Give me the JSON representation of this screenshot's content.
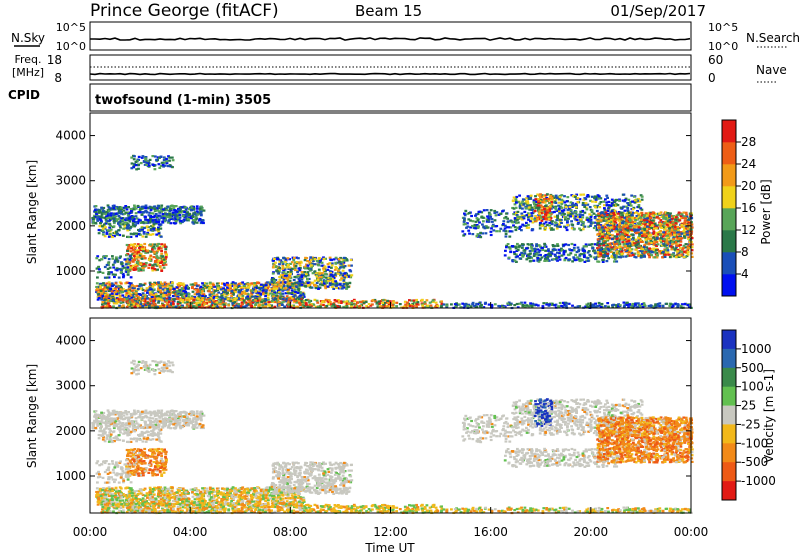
{
  "header": {
    "station": "Prince George (fitACF)",
    "beam": "Beam 15",
    "date": "01/Sep/2017"
  },
  "sky_panel": {
    "left_label": "N.Sky",
    "left_ticks": [
      "10^5",
      "10^0"
    ],
    "right_ticks": [
      "10^5",
      "10^0"
    ],
    "right_label": "N.Search"
  },
  "freq_panel": {
    "left_label_1": "Freq.",
    "left_label_2": "[MHz]",
    "left_ticks": [
      "18",
      "8"
    ],
    "right_ticks": [
      "60",
      "0"
    ],
    "right_label": "Nave"
  },
  "cpid_panel": {
    "label": "CPID",
    "program": "twofsound (1-min) 3505"
  },
  "chart_data": [
    {
      "type": "heatmap",
      "name": "power",
      "xlabel": "",
      "ylabel": "Slant Range [km]",
      "xlim": [
        0,
        24
      ],
      "ylim": [
        180,
        4500
      ],
      "yticks": [
        1000,
        2000,
        3000,
        4000
      ],
      "colorbar": {
        "label": "Power [dB]",
        "ticks": [
          "4",
          "8",
          "12",
          "16",
          "20",
          "24",
          "28"
        ],
        "colors": [
          "#0010f0",
          "#1a4fb8",
          "#2a7848",
          "#58a558",
          "#f0d21a",
          "#f29a18",
          "#ee5e16",
          "#e21a14"
        ]
      }
    },
    {
      "type": "heatmap",
      "name": "velocity",
      "xlabel": "Time UT",
      "ylabel": "Slant Range [km]",
      "xlim": [
        0,
        24
      ],
      "ylim": [
        180,
        4500
      ],
      "xticks": [
        "00:00",
        "04:00",
        "08:00",
        "12:00",
        "16:00",
        "20:00",
        "00:00"
      ],
      "yticks": [
        1000,
        2000,
        3000,
        4000
      ],
      "colorbar": {
        "label": "Velocity [m s-1]",
        "ticks": [
          "1000",
          "500",
          "100",
          "25",
          "-25",
          "-100",
          "-500",
          "-1000"
        ],
        "colors": [
          "#1a32c0",
          "#2a68b0",
          "#3a8a4a",
          "#62c050",
          "#c8c8c0",
          "#f2b81a",
          "#f28a18",
          "#ee5a16",
          "#e21a14"
        ]
      }
    }
  ]
}
